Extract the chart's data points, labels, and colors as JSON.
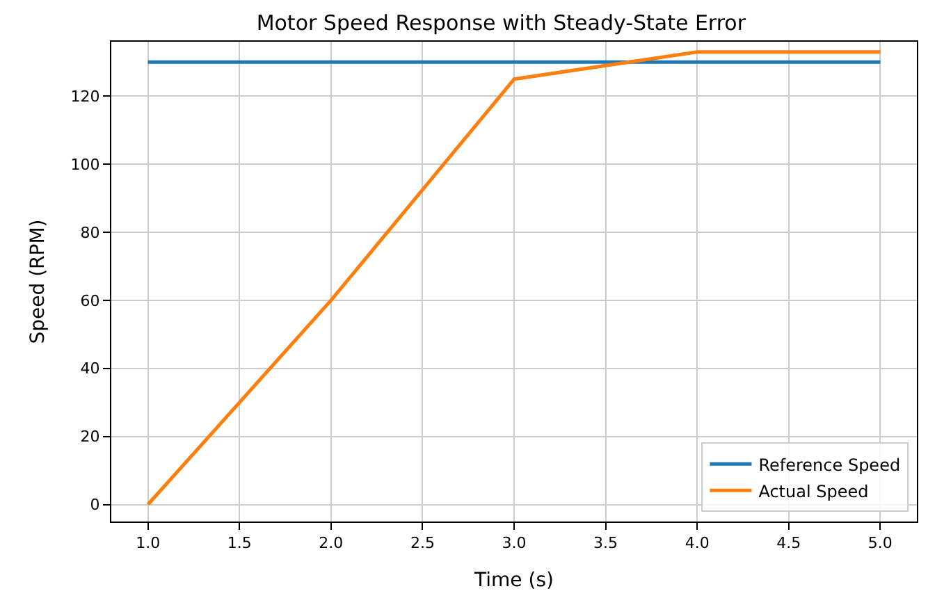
{
  "chart_data": {
    "type": "line",
    "title": "Motor Speed Response with Steady-State Error",
    "xlabel": "Time (s)",
    "ylabel": "Speed (RPM)",
    "x": [
      1.0,
      2.0,
      3.0,
      4.0,
      5.0
    ],
    "series": [
      {
        "name": "Reference Speed",
        "color": "#1f77b4",
        "values": [
          130,
          130,
          130,
          130,
          130
        ]
      },
      {
        "name": "Actual Speed",
        "color": "#ff7f0e",
        "values": [
          0,
          60,
          125,
          133,
          133
        ]
      }
    ],
    "xlim": [
      0.8,
      5.2
    ],
    "xticks": [
      {
        "value": 1.0,
        "label": "1.0"
      },
      {
        "value": 1.5,
        "label": "1.5"
      },
      {
        "value": 2.0,
        "label": "2.0"
      },
      {
        "value": 2.5,
        "label": "2.5"
      },
      {
        "value": 3.0,
        "label": "3.0"
      },
      {
        "value": 3.5,
        "label": "3.5"
      },
      {
        "value": 4.0,
        "label": "4.0"
      },
      {
        "value": 4.5,
        "label": "4.5"
      },
      {
        "value": 5.0,
        "label": "5.0"
      }
    ],
    "ylim": [
      -5,
      136
    ],
    "yticks": [
      0,
      20,
      40,
      60,
      80,
      100,
      120
    ],
    "grid": true,
    "legend": "bottom right",
    "marker": "none",
    "line_style": "solid"
  }
}
